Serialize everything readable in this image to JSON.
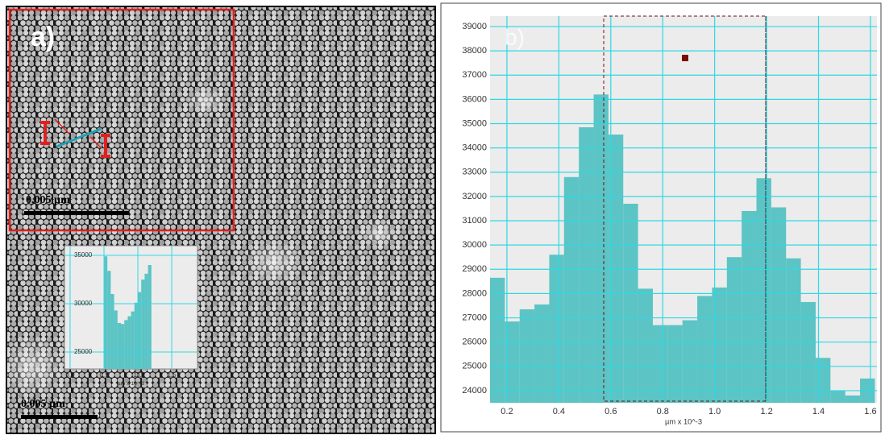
{
  "figure": {
    "panel_label": "a)",
    "scale_bars": [
      "0,005 µm",
      "0,005 µm"
    ]
  },
  "chart_data": [
    {
      "type": "histogram",
      "x_label": "µm x 10^-3",
      "bins": [
        0.5,
        0.55,
        0.6,
        0.65,
        0.7,
        0.75,
        0.8,
        0.85,
        0.9,
        0.95,
        1.0,
        1.05,
        1.1,
        1.15,
        1.2
      ],
      "values": [
        34900,
        33400,
        31000,
        29300,
        28000,
        27900,
        28300,
        28700,
        29200,
        30100,
        31200,
        32500,
        33100,
        34000
      ],
      "color": "#5cc4c4",
      "xlim": [
        -0.083,
        1.88
      ],
      "ylim": [
        23250,
        36000
      ],
      "xticks": [
        {
          "value": 0,
          "label": "0.0"
        },
        0.5,
        {
          "value": 1,
          "label": "1.0"
        },
        1.5
      ],
      "yticks": [
        25000,
        30000,
        35000
      ],
      "grid": true
    },
    {
      "type": "histogram",
      "title": "b)",
      "x_label": "µm x 10^-3",
      "bins": [
        0.135,
        0.192,
        0.249,
        0.306,
        0.363,
        0.42,
        0.477,
        0.534,
        0.591,
        0.648,
        0.705,
        0.762,
        0.819,
        0.876,
        0.933,
        0.99,
        1.047,
        1.104,
        1.161,
        1.218,
        1.275,
        1.332,
        1.389,
        1.446,
        1.503,
        1.56,
        1.617
      ],
      "values": [
        28650,
        26850,
        27350,
        27550,
        29600,
        32800,
        34850,
        36200,
        34550,
        31700,
        28200,
        26700,
        26700,
        26900,
        27900,
        28250,
        29500,
        31400,
        32750,
        31550,
        29450,
        27650,
        25350,
        24000,
        23800,
        24500
      ],
      "color": "#5cc4c4",
      "xlim": [
        0.135,
        1.625
      ],
      "ylim": [
        23500,
        39430
      ],
      "xticks": [
        0.2,
        0.4,
        0.6,
        0.8,
        {
          "value": 1,
          "label": "1.0"
        },
        1.2,
        1.4,
        1.6
      ],
      "yticks": [
        24000,
        25000,
        26000,
        27000,
        28000,
        29000,
        30000,
        31000,
        32000,
        33000,
        34000,
        35000,
        36000,
        37000,
        38000,
        39000
      ],
      "grid": true
    }
  ]
}
